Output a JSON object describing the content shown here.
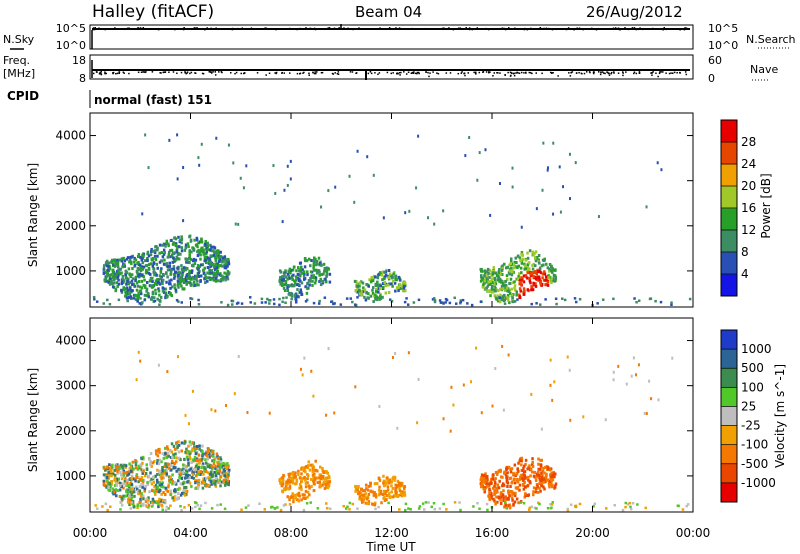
{
  "header": {
    "station": "Halley (fitACF)",
    "beam": "Beam 04",
    "date": "26/Aug/2012"
  },
  "top_panels": {
    "nsky_label": "N.Sky",
    "nsky_ticks": [
      "10^5",
      "10^0"
    ],
    "nsearch_label": "N.Search",
    "nsearch_ticks": [
      "10^5",
      "10^0"
    ],
    "freq_label": "Freq.",
    "freq_unit": "[MHz]",
    "freq_ticks": [
      "18",
      "8"
    ],
    "nave_label": "Nave",
    "nave_ticks": [
      "60",
      "0"
    ],
    "cpid_label": "CPID",
    "cpid_value": "normal (fast) 151"
  },
  "colors": {
    "power_scale": [
      "#1414e6",
      "#2850b4",
      "#3c8c64",
      "#28a028",
      "#a0c828",
      "#f0a000",
      "#e64600",
      "#e60000"
    ],
    "velocity_scale": [
      "#1e3cc8",
      "#2d6496",
      "#3c8c50",
      "#50c828",
      "#bebebe",
      "#f0a000",
      "#f57800",
      "#eb4600",
      "#e60000"
    ]
  },
  "chart_data": [
    {
      "type": "heatmap",
      "name": "power",
      "ylabel": "Slant Range [km]",
      "yticks": [
        "1000",
        "2000",
        "3000",
        "4000"
      ],
      "ylim": [
        200,
        4500
      ],
      "x_ticks": [
        "00:00",
        "04:00",
        "08:00",
        "12:00",
        "16:00",
        "20:00",
        "00:00"
      ],
      "xlim_hours": [
        0,
        24
      ],
      "colorbar": {
        "label": "Power [dB]",
        "ticks": [
          "4",
          "8",
          "12",
          "16",
          "20",
          "24",
          "28"
        ],
        "range": [
          0,
          32
        ]
      },
      "features": [
        {
          "t_start": "00:30",
          "t_end": "05:30",
          "range_km": [
            400,
            1700
          ],
          "level": "low-mid"
        },
        {
          "t_start": "07:30",
          "t_end": "09:30",
          "range_km": [
            500,
            1300
          ],
          "level": "low-mid"
        },
        {
          "t_start": "10:30",
          "t_end": "12:30",
          "range_km": [
            400,
            1000
          ],
          "level": "mid"
        },
        {
          "t_start": "15:30",
          "t_end": "18:30",
          "range_km": [
            400,
            1400
          ],
          "level": "high",
          "peak": 28
        }
      ]
    },
    {
      "type": "heatmap",
      "name": "velocity",
      "ylabel": "Slant Range [km]",
      "yticks": [
        "1000",
        "2000",
        "3000",
        "4000"
      ],
      "ylim": [
        200,
        4500
      ],
      "x_ticks": [
        "00:00",
        "04:00",
        "08:00",
        "12:00",
        "16:00",
        "20:00",
        "00:00"
      ],
      "xlim_hours": [
        0,
        24
      ],
      "xlabel": "Time UT",
      "colorbar": {
        "label": "Velocity [m s^-1]",
        "ticks": [
          "1000",
          "500",
          "100",
          "25",
          "-25",
          "-100",
          "-500",
          "-1000"
        ]
      },
      "features": [
        {
          "t_start": "00:30",
          "t_end": "05:30",
          "range_km": [
            400,
            1700
          ],
          "velocity": "mixed"
        },
        {
          "t_start": "07:30",
          "t_end": "09:30",
          "range_km": [
            500,
            1300
          ],
          "velocity": "-100"
        },
        {
          "t_start": "10:30",
          "t_end": "12:30",
          "range_km": [
            400,
            1000
          ],
          "velocity": "-100"
        },
        {
          "t_start": "15:30",
          "t_end": "18:30",
          "range_km": [
            400,
            1400
          ],
          "velocity": "-500"
        }
      ]
    }
  ]
}
